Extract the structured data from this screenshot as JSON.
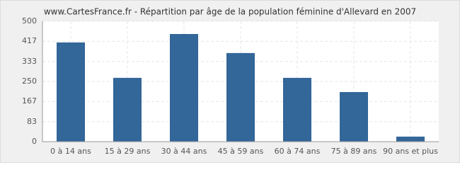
{
  "chart_data": {
    "type": "bar",
    "title": "www.CartesFrance.fr - Répartition par âge de la population féminine d'Allevard en 2007",
    "categories": [
      "0 à 14 ans",
      "15 à 29 ans",
      "30 à 44 ans",
      "45 à 59 ans",
      "60 à 74 ans",
      "75 à 89 ans",
      "90 ans et plus"
    ],
    "values": [
      412,
      265,
      447,
      368,
      265,
      206,
      21
    ],
    "color": "#336699",
    "ylim": [
      0,
      500
    ],
    "yticks": [
      0,
      83,
      167,
      250,
      333,
      417,
      500
    ],
    "grid": true
  }
}
